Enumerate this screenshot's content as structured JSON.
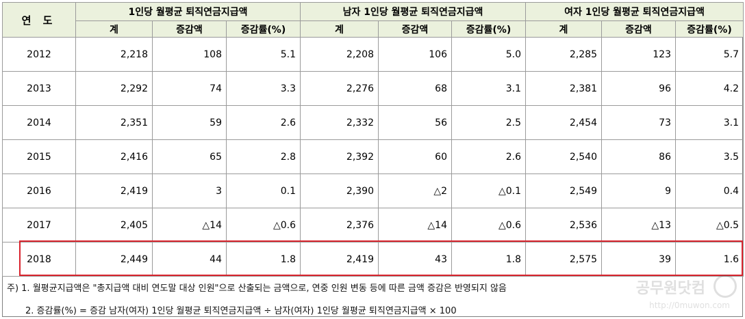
{
  "header": {
    "year_label": "연 도",
    "groups": [
      "1인당 월평균 퇴직연금지급액",
      "남자 1인당 월평균 퇴직연금지급액",
      "여자 1인당 월평균 퇴직연금지급액"
    ],
    "sub": [
      "계",
      "증감액",
      "증감률(%)"
    ]
  },
  "rows": [
    {
      "year": "2012",
      "cells": [
        "2,218",
        "108",
        "5.1",
        "2,208",
        "106",
        "5.0",
        "2,285",
        "123",
        "5.7"
      ]
    },
    {
      "year": "2013",
      "cells": [
        "2,292",
        "74",
        "3.3",
        "2,276",
        "68",
        "3.1",
        "2,381",
        "96",
        "4.2"
      ]
    },
    {
      "year": "2014",
      "cells": [
        "2,351",
        "59",
        "2.6",
        "2,332",
        "56",
        "2.5",
        "2,454",
        "73",
        "3.1"
      ]
    },
    {
      "year": "2015",
      "cells": [
        "2,416",
        "65",
        "2.8",
        "2,392",
        "60",
        "2.6",
        "2,540",
        "86",
        "3.5"
      ]
    },
    {
      "year": "2016",
      "cells": [
        "2,419",
        "3",
        "0.1",
        "2,390",
        "△2",
        "△0.1",
        "2,549",
        "9",
        "0.4"
      ]
    },
    {
      "year": "2017",
      "cells": [
        "2,405",
        "△14",
        "△0.6",
        "2,376",
        "△14",
        "△0.6",
        "2,536",
        "△13",
        "△0.5"
      ]
    },
    {
      "year": "2018",
      "cells": [
        "2,449",
        "44",
        "1.8",
        "2,419",
        "43",
        "1.8",
        "2,575",
        "39",
        "1.6"
      ]
    }
  ],
  "highlight_year": "2018",
  "highlight_color": "#d9232d",
  "header_bg": "#ebf1dd",
  "notes": [
    "주) 1. 월평균지급액은 \"총지급액 대비 연도말 대상 인원\"으로 산출되는 금액으로, 연중 인원 변동 등에 따른 금액 증감은 반영되지 않음",
    "2. 증감률(%) = 증감 남자(여자) 1인당 월평균 퇴직연금지급액 ÷ 남자(여자) 1인당 월평균 퇴직연금지급액 × 100"
  ],
  "watermark": {
    "text": "공무원닷컴",
    "url": "http://0muwon.com",
    "icon": "gong-circle-logo"
  }
}
